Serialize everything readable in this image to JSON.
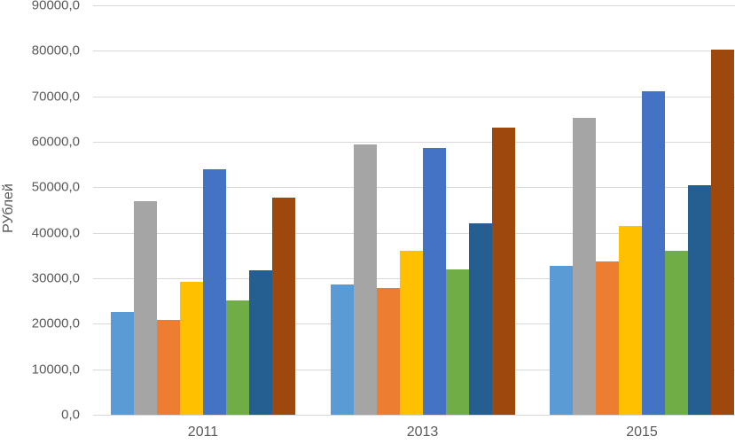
{
  "chart_data": {
    "type": "bar",
    "title": "",
    "xlabel": "",
    "ylabel": "РУблей",
    "categories": [
      "2011",
      "2013",
      "2015"
    ],
    "series": [
      {
        "name": "series-1-light-blue",
        "color": "#5B9BD5",
        "values": [
          22600,
          28600,
          32800
        ]
      },
      {
        "name": "series-2-gray",
        "color": "#A5A5A5",
        "values": [
          47000,
          59400,
          65300
        ]
      },
      {
        "name": "series-3-orange",
        "color": "#ED7D31",
        "values": [
          20900,
          27900,
          33700
        ]
      },
      {
        "name": "series-4-yellow",
        "color": "#FFC000",
        "values": [
          29200,
          36000,
          41500
        ]
      },
      {
        "name": "series-5-blue",
        "color": "#4472C4",
        "values": [
          54000,
          58700,
          71200
        ]
      },
      {
        "name": "series-6-green",
        "color": "#70AD47",
        "values": [
          25200,
          31900,
          36000
        ]
      },
      {
        "name": "series-7-dark-blue",
        "color": "#255E91",
        "values": [
          31800,
          42100,
          50400
        ]
      },
      {
        "name": "series-8-dark-red",
        "color": "#9E480E",
        "values": [
          47800,
          63100,
          80300
        ]
      }
    ],
    "y_axis": {
      "min": 0,
      "max": 90000,
      "step": 10000,
      "tick_labels": [
        "0,0",
        "10000,0",
        "20000,0",
        "30000,0",
        "40000,0",
        "50000,0",
        "60000,0",
        "70000,0",
        "80000,0",
        "90000,0"
      ]
    },
    "grid": true,
    "legend": "none"
  },
  "colors": {
    "grid": "#D9D9D9",
    "axis_text": "#595959",
    "background": "#FFFFFF"
  }
}
